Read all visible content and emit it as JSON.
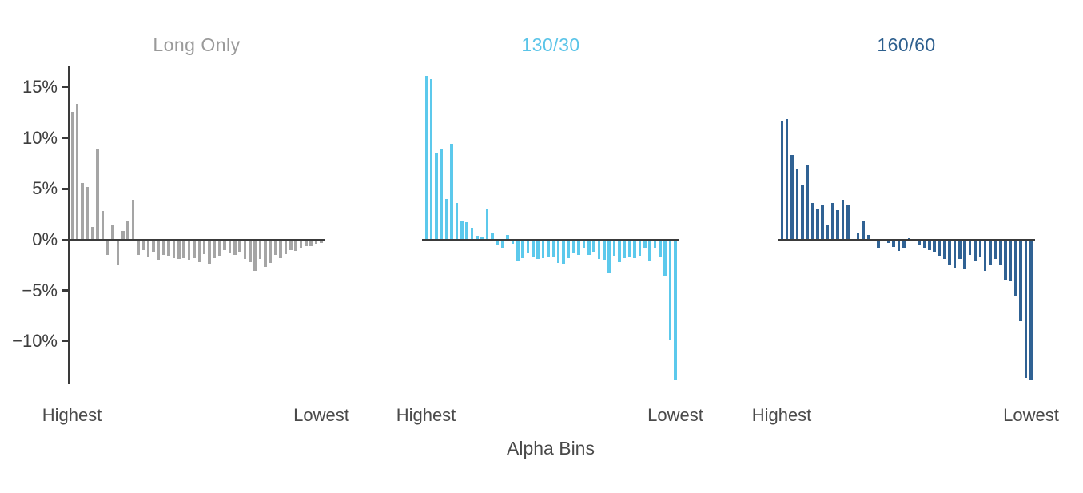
{
  "figure": {
    "xlabel": "Alpha Bins",
    "background_color": "#ffffff",
    "axis_color": "#3a3a3a",
    "tick_label_color": "#3d3d3d",
    "label_color": "#4a4a4a",
    "grid": false,
    "legend": false,
    "unit": "%",
    "bins_per_chart": 50,
    "ylim": [
      -14.5,
      17.1
    ],
    "y_ticks": [
      {
        "label": "15%",
        "value": 15
      },
      {
        "label": "10%",
        "value": 10
      },
      {
        "label": "5%",
        "value": 5
      },
      {
        "label": "0%",
        "value": 0
      },
      {
        "label": "−5%",
        "value": -5
      },
      {
        "label": "−10%",
        "value": -10
      }
    ]
  },
  "chart_data": [
    {
      "type": "bar",
      "title": "Long Only",
      "title_color": "#9a9a9a",
      "bar_color": "#a5a5a5",
      "x_tick_labels": [
        "Highest",
        "Lowest"
      ],
      "values_pct": [
        12.6,
        13.4,
        5.6,
        5.2,
        1.3,
        8.9,
        2.8,
        -1.5,
        1.4,
        -2.5,
        0.9,
        1.8,
        3.9,
        -1.5,
        -1.0,
        -1.7,
        -1.2,
        -2.0,
        -1.5,
        -1.6,
        -1.8,
        -1.9,
        -1.8,
        -2.0,
        -1.8,
        -2.2,
        -1.4,
        -2.4,
        -1.8,
        -1.6,
        -1.0,
        -1.3,
        -1.5,
        -1.2,
        -1.9,
        -2.2,
        -3.1,
        -1.9,
        -2.7,
        -2.3,
        -1.5,
        -1.8,
        -1.4,
        -1.0,
        -1.1,
        -0.8,
        -0.6,
        -0.6,
        -0.4,
        -0.3
      ]
    },
    {
      "type": "bar",
      "title": "130/30",
      "title_color": "#5ac4e8",
      "bar_color": "#5cc9ec",
      "x_tick_labels": [
        "Highest",
        "Lowest"
      ],
      "values_pct": [
        16.1,
        15.8,
        8.6,
        9.0,
        4.0,
        9.4,
        3.6,
        1.8,
        1.7,
        1.2,
        0.4,
        0.3,
        3.1,
        0.7,
        -0.5,
        -0.9,
        0.5,
        -0.4,
        -2.1,
        -1.8,
        -1.3,
        -1.75,
        -1.9,
        -1.8,
        -1.75,
        -1.7,
        -2.25,
        -2.45,
        -1.8,
        -1.3,
        -1.5,
        -0.9,
        -1.5,
        -1.2,
        -1.9,
        -2.05,
        -3.3,
        -1.55,
        -2.2,
        -1.8,
        -1.7,
        -1.8,
        -1.55,
        -0.9,
        -2.15,
        -0.8,
        -1.7,
        -3.6,
        -9.8,
        -13.8
      ]
    },
    {
      "type": "bar",
      "title": "160/60",
      "title_color": "#2d5f8e",
      "bar_color": "#306294",
      "x_tick_labels": [
        "Highest",
        "Lowest"
      ],
      "values_pct": [
        11.7,
        11.9,
        8.3,
        7.0,
        5.4,
        7.3,
        3.6,
        3.0,
        3.5,
        1.4,
        3.6,
        2.9,
        3.9,
        3.4,
        0.1,
        0.6,
        1.8,
        0.5,
        0.1,
        -0.9,
        0.1,
        -0.3,
        -0.7,
        -1.1,
        -0.85,
        0.2,
        -0.1,
        -0.5,
        -0.9,
        -1.0,
        -1.2,
        -1.6,
        -1.9,
        -2.5,
        -2.8,
        -1.9,
        -2.9,
        -1.5,
        -2.1,
        -1.75,
        -3.1,
        -2.5,
        -1.9,
        -2.5,
        -3.9,
        -4.1,
        -5.5,
        -8.0,
        -13.6,
        -13.8
      ]
    }
  ]
}
